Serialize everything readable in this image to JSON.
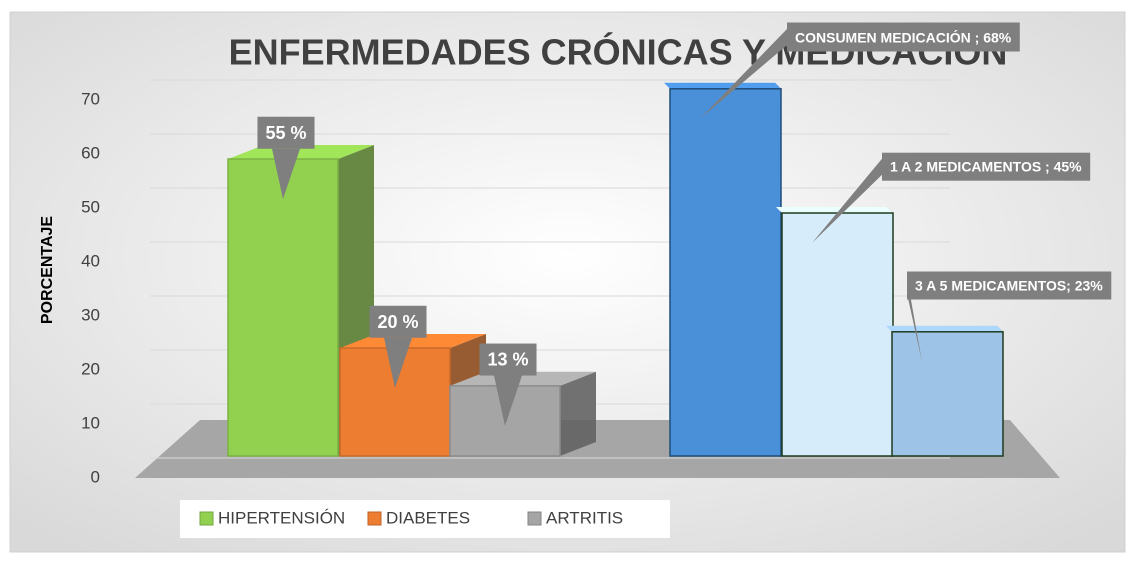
{
  "chart_data": {
    "type": "bar",
    "title": "ENFERMEDADES CRÓNICAS Y MEDICACIÓN",
    "y_label": "PORCENTAJE",
    "ylim": [
      0,
      70
    ],
    "yticks": [
      0,
      10,
      20,
      30,
      40,
      50,
      60,
      70
    ],
    "grid": true,
    "legend": "bottom-left",
    "series": [
      {
        "name": "HIPERTENSIÓN",
        "color": "#92d050",
        "values": [
          55
        ],
        "value_labels": [
          "55 %"
        ]
      },
      {
        "name": "DIABETES",
        "color": "#ed7d31",
        "values": [
          20
        ],
        "value_labels": [
          "20 %"
        ]
      },
      {
        "name": "ARTRITIS",
        "color": "#a5a5a5",
        "values": [
          13
        ],
        "value_labels": [
          "13 %"
        ]
      }
    ],
    "medication": {
      "colors": [
        "#4a90d9",
        "#d6ecfb",
        "#9dc3e6"
      ],
      "values": [
        68,
        45,
        23
      ],
      "value_labels": [
        "CONSUMEN MEDICACIÓN ; 68%",
        "1 A 2 MEDICAMENTOS ; 45%",
        "3 A 5 MEDICAMENTOS; 23%"
      ]
    }
  }
}
